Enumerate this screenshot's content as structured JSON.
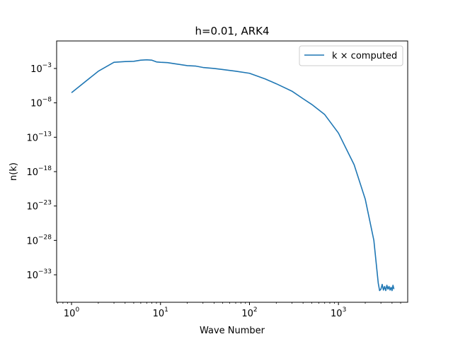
{
  "chart_data": {
    "type": "line",
    "title": "h=0.01, ARK4",
    "xlabel": "Wave Number",
    "ylabel": "n(k)",
    "x_scale": "log",
    "y_scale": "log",
    "xlim": [
      0.68,
      6000
    ],
    "ylim": [
      1e-37,
      10.0
    ],
    "x_ticks": [
      {
        "value": 1,
        "base": "10",
        "exp": "0"
      },
      {
        "value": 10,
        "base": "10",
        "exp": "1"
      },
      {
        "value": 100,
        "base": "10",
        "exp": "2"
      },
      {
        "value": 1000,
        "base": "10",
        "exp": "3"
      }
    ],
    "y_ticks": [
      {
        "value": 0.001,
        "base": "10",
        "exp": "−3"
      },
      {
        "value": 1e-08,
        "base": "10",
        "exp": "−8"
      },
      {
        "value": 1e-13,
        "base": "10",
        "exp": "−13"
      },
      {
        "value": 1e-18,
        "base": "10",
        "exp": "−18"
      },
      {
        "value": 1e-23,
        "base": "10",
        "exp": "−23"
      },
      {
        "value": 1e-28,
        "base": "10",
        "exp": "−28"
      },
      {
        "value": 1e-33,
        "base": "10",
        "exp": "−33"
      }
    ],
    "grid": false,
    "legend_position": "top-right",
    "series": [
      {
        "name": "k × computed",
        "color": "#1f77b4",
        "points": [
          [
            1,
            3e-07
          ],
          [
            2,
            0.0004
          ],
          [
            3,
            0.008
          ],
          [
            4,
            0.01
          ],
          [
            5,
            0.011
          ],
          [
            6,
            0.016
          ],
          [
            7,
            0.018
          ],
          [
            8,
            0.016
          ],
          [
            9,
            0.009
          ],
          [
            10,
            0.008
          ],
          [
            12,
            0.007
          ],
          [
            15,
            0.0045
          ],
          [
            20,
            0.0026
          ],
          [
            25,
            0.0022
          ],
          [
            30,
            0.0014
          ],
          [
            40,
            0.001
          ],
          [
            50,
            0.0007
          ],
          [
            70,
            0.0004
          ],
          [
            100,
            0.0002
          ],
          [
            150,
            3e-05
          ],
          [
            200,
            6e-06
          ],
          [
            300,
            5e-07
          ],
          [
            400,
            4e-08
          ],
          [
            500,
            6e-09
          ],
          [
            700,
            2e-10
          ],
          [
            1000,
            4e-13
          ],
          [
            1500,
            1e-17
          ],
          [
            2000,
            1e-22
          ],
          [
            2500,
            1e-28
          ],
          [
            2800,
            6e-35
          ],
          [
            2900,
            5e-36
          ],
          [
            3000,
            8e-36
          ],
          [
            3100,
            4e-35
          ],
          [
            3200,
            6e-36
          ],
          [
            3300,
            2e-35
          ],
          [
            3400,
            5e-36
          ],
          [
            3500,
            3e-35
          ],
          [
            3600,
            8e-36
          ],
          [
            3700,
            2e-35
          ],
          [
            3800,
            6e-36
          ],
          [
            3900,
            1.5e-35
          ],
          [
            4000,
            5e-36
          ],
          [
            4100,
            3e-35
          ],
          [
            4200,
            8e-36
          ]
        ]
      }
    ]
  }
}
